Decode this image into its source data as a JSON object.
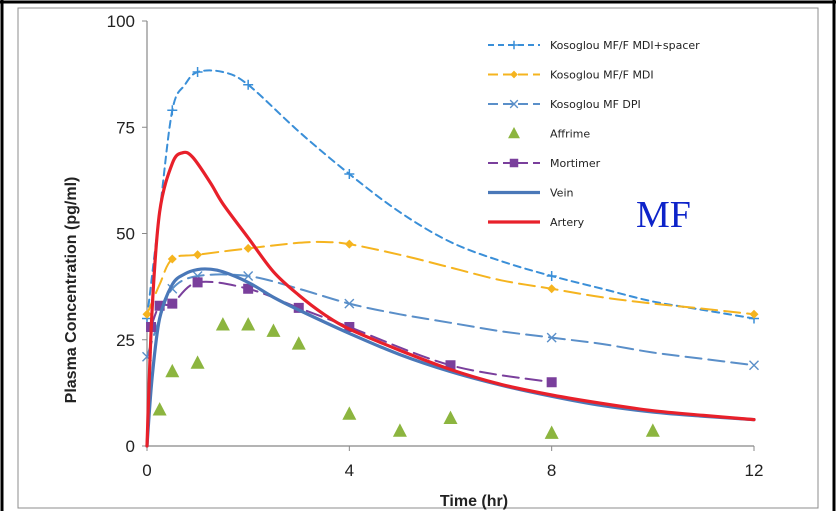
{
  "chart_data": {
    "type": "line",
    "xlabel": "Time (hr)",
    "ylabel": "Plasma Concentration (pg/ml)",
    "xlim": [
      0,
      12
    ],
    "ylim": [
      0,
      100
    ],
    "x_ticks": [
      "0",
      "4",
      "8",
      "12"
    ],
    "y_ticks": [
      "0",
      "25",
      "50",
      "75",
      "100"
    ],
    "annotation": "MF",
    "grid": false,
    "legend_position": "top-right",
    "series": [
      {
        "name": "Kosoglou MF/F MDI+spacer",
        "color": "#3a8fd8",
        "dash": "short",
        "marker": "plus",
        "line": [
          [
            0,
            30
          ],
          [
            0.25,
            55
          ],
          [
            0.5,
            79
          ],
          [
            0.75,
            85
          ],
          [
            1,
            88
          ],
          [
            1.5,
            88
          ],
          [
            2,
            85
          ],
          [
            3,
            74
          ],
          [
            4,
            64
          ],
          [
            5,
            55
          ],
          [
            6,
            48
          ],
          [
            7,
            43.5
          ],
          [
            8,
            40
          ],
          [
            9,
            37
          ],
          [
            10,
            34
          ],
          [
            11,
            32
          ],
          [
            12,
            30
          ]
        ],
        "markers": [
          [
            0,
            30
          ],
          [
            0.5,
            79
          ],
          [
            1,
            88
          ],
          [
            2,
            85
          ],
          [
            4,
            64
          ],
          [
            8,
            40
          ],
          [
            12,
            30
          ]
        ]
      },
      {
        "name": "Kosoglou MF/F MDI",
        "color": "#f5b41f",
        "dash": "long",
        "marker": "diamond",
        "line": [
          [
            0,
            31
          ],
          [
            0.25,
            38
          ],
          [
            0.5,
            44
          ],
          [
            1,
            45
          ],
          [
            2,
            46.5
          ],
          [
            3,
            47.8
          ],
          [
            3.5,
            48
          ],
          [
            4,
            47.5
          ],
          [
            5,
            45
          ],
          [
            6,
            42
          ],
          [
            7,
            39
          ],
          [
            8,
            37
          ],
          [
            9,
            35
          ],
          [
            10,
            33.5
          ],
          [
            11,
            32.3
          ],
          [
            12,
            31
          ]
        ],
        "markers": [
          [
            0,
            31
          ],
          [
            0.5,
            44
          ],
          [
            1,
            45
          ],
          [
            2,
            46.5
          ],
          [
            4,
            47.5
          ],
          [
            8,
            37
          ],
          [
            12,
            31
          ]
        ]
      },
      {
        "name": "Kosoglou MF DPI",
        "color": "#5a8fc9",
        "dash": "long",
        "marker": "x",
        "line": [
          [
            0,
            21
          ],
          [
            0.25,
            30
          ],
          [
            0.5,
            37
          ],
          [
            1,
            40
          ],
          [
            2,
            40
          ],
          [
            3,
            37
          ],
          [
            4,
            33.5
          ],
          [
            5,
            31
          ],
          [
            6,
            29
          ],
          [
            7,
            27
          ],
          [
            8,
            25.5
          ],
          [
            9,
            24
          ],
          [
            10,
            22
          ],
          [
            11,
            20.5
          ],
          [
            12,
            19
          ]
        ],
        "markers": [
          [
            0,
            21
          ],
          [
            0.5,
            37
          ],
          [
            1,
            40
          ],
          [
            2,
            40
          ],
          [
            4,
            33.5
          ],
          [
            8,
            25.5
          ],
          [
            12,
            19
          ]
        ]
      },
      {
        "name": "Affrime",
        "color": "#8cb53f",
        "dash": "none",
        "marker": "triangle",
        "line": [],
        "markers": [
          [
            0.25,
            8.5
          ],
          [
            0.5,
            17.5
          ],
          [
            1,
            19.5
          ],
          [
            1.5,
            28.5
          ],
          [
            2,
            28.5
          ],
          [
            2.5,
            27
          ],
          [
            3,
            24
          ],
          [
            4,
            7.5
          ],
          [
            5,
            3.5
          ],
          [
            6,
            6.5
          ],
          [
            8,
            3
          ],
          [
            10,
            3.5
          ]
        ]
      },
      {
        "name": "Mortimer",
        "color": "#7a3f9c",
        "dash": "long",
        "marker": "square",
        "line": [
          [
            0.08,
            28
          ],
          [
            0.25,
            33
          ],
          [
            0.5,
            33.5
          ],
          [
            1,
            38.5
          ],
          [
            2,
            37
          ],
          [
            3,
            32.5
          ],
          [
            4,
            28
          ],
          [
            6,
            19
          ],
          [
            8,
            15
          ]
        ],
        "markers": [
          [
            0.08,
            28
          ],
          [
            0.25,
            33
          ],
          [
            0.5,
            33.5
          ],
          [
            1,
            38.5
          ],
          [
            2,
            37
          ],
          [
            3,
            32.5
          ],
          [
            4,
            28
          ],
          [
            6,
            19
          ],
          [
            8,
            15
          ]
        ]
      },
      {
        "name": "Vein",
        "color": "#4a78b8",
        "dash": "none",
        "marker": "none",
        "line": [
          [
            0,
            0
          ],
          [
            0.1,
            16
          ],
          [
            0.25,
            30
          ],
          [
            0.5,
            38
          ],
          [
            0.75,
            40.5
          ],
          [
            1,
            41.5
          ],
          [
            1.25,
            41.6
          ],
          [
            1.5,
            41
          ],
          [
            2,
            38.5
          ],
          [
            2.5,
            35
          ],
          [
            3,
            32
          ],
          [
            4,
            26.5
          ],
          [
            5,
            21.5
          ],
          [
            6,
            17.5
          ],
          [
            7,
            14.3
          ],
          [
            8,
            11.7
          ],
          [
            9,
            9.5
          ],
          [
            10,
            8
          ],
          [
            11,
            7
          ],
          [
            12,
            6.2
          ]
        ],
        "markers": []
      },
      {
        "name": "Artery",
        "color": "#e8202a",
        "dash": "none",
        "marker": "none",
        "line": [
          [
            0,
            0
          ],
          [
            0.1,
            32
          ],
          [
            0.25,
            55
          ],
          [
            0.5,
            66.5
          ],
          [
            0.7,
            69
          ],
          [
            0.9,
            68
          ],
          [
            1.25,
            62
          ],
          [
            1.5,
            57
          ],
          [
            2,
            49
          ],
          [
            2.5,
            41
          ],
          [
            3,
            35.5
          ],
          [
            3.5,
            31
          ],
          [
            4,
            27.5
          ],
          [
            5,
            22.5
          ],
          [
            6,
            18
          ],
          [
            7,
            14.5
          ],
          [
            8,
            12
          ],
          [
            9,
            10
          ],
          [
            10,
            8.3
          ],
          [
            11,
            7.2
          ],
          [
            12,
            6.2
          ]
        ],
        "markers": []
      }
    ]
  }
}
